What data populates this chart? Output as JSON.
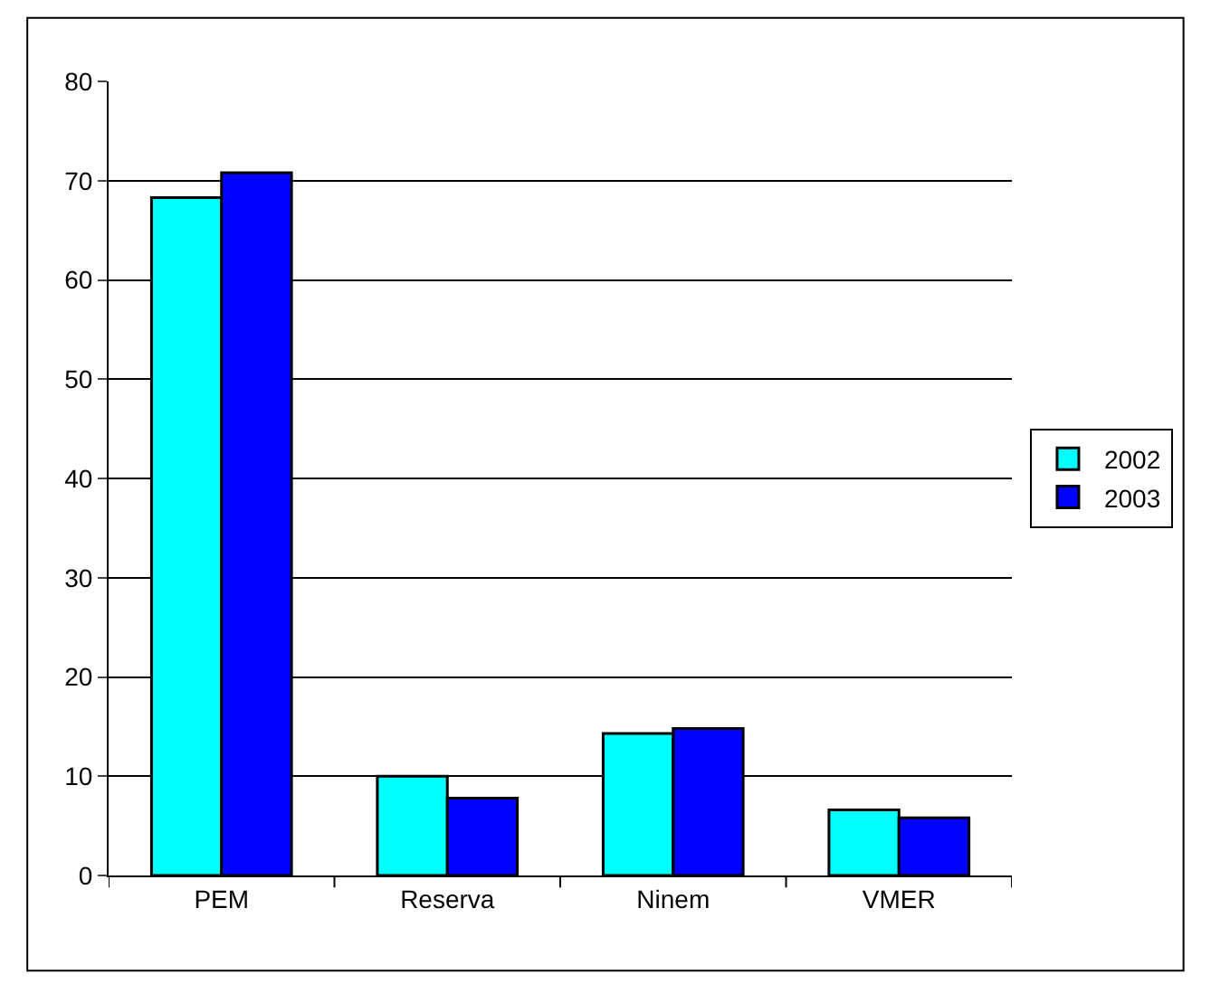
{
  "chart_data": {
    "type": "bar",
    "categories": [
      "PEM",
      "Reserva",
      "Ninem",
      "VMER"
    ],
    "series": [
      {
        "name": "2002",
        "color": "#00ffff",
        "values": [
          68.3,
          10.0,
          14.3,
          6.6
        ]
      },
      {
        "name": "2003",
        "color": "#0000ff",
        "values": [
          70.8,
          7.8,
          14.8,
          5.8
        ]
      }
    ],
    "ylim": [
      0,
      80
    ],
    "yticks": [
      0,
      10,
      20,
      30,
      40,
      50,
      60,
      70,
      80
    ],
    "grid": "y",
    "legend": "right"
  }
}
